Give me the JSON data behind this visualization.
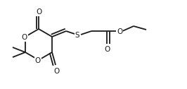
{
  "bg_color": "#ffffff",
  "line_color": "#1a1a1a",
  "line_width": 1.3,
  "figsize": [
    2.66,
    1.26
  ],
  "dpi": 100,
  "fs": 7.5,
  "xlim": [
    0,
    266
  ],
  "ylim": [
    0,
    126
  ]
}
